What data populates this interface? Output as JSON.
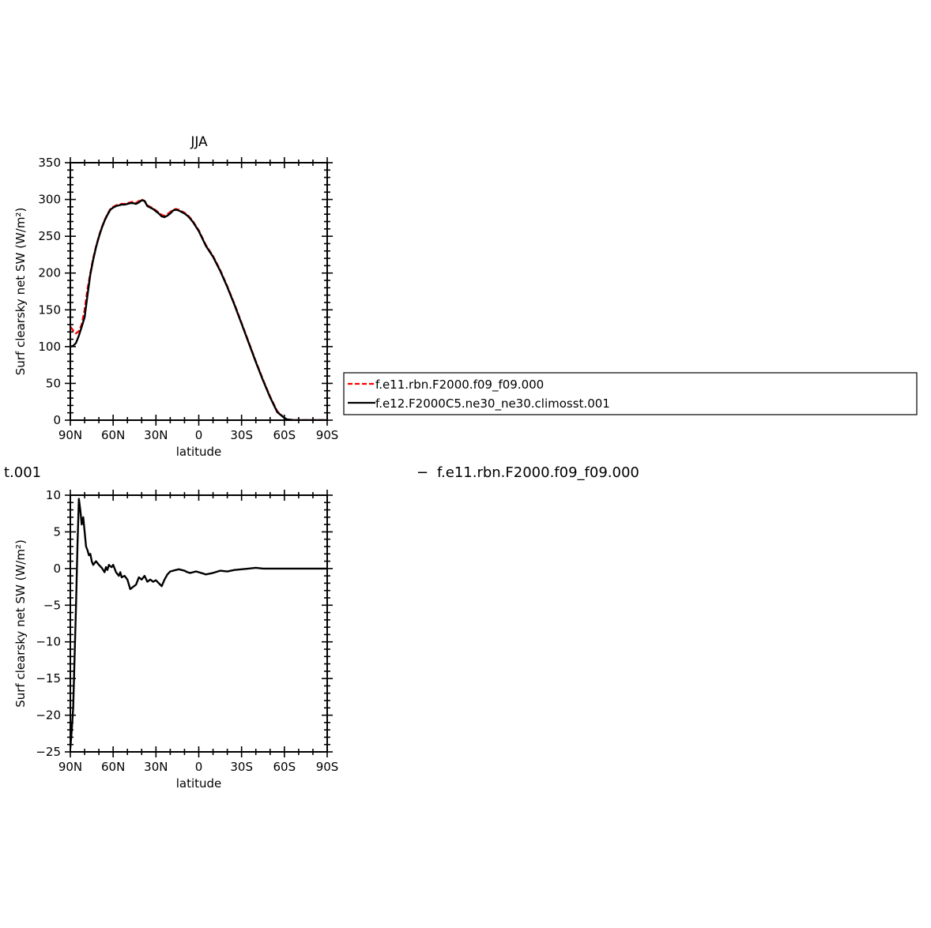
{
  "legend": {
    "entries": [
      {
        "label": "f.e11.rbn.F2000.f09_f09.000",
        "color": "#ff0000",
        "dash": "dashed"
      },
      {
        "label": "f.e12.F2000C5.ne30_ne30.climosst.001",
        "color": "#000000",
        "dash": "solid"
      }
    ]
  },
  "diff_title": {
    "left": "t.001",
    "dash": "−",
    "right": "f.e11.rbn.F2000.f09_f09.000"
  },
  "chart_data": [
    {
      "type": "line",
      "title": "JJA",
      "xlabel": "latitude",
      "ylabel": "Surf clearsky net SW (W/m²)",
      "xlim": [
        90,
        -90
      ],
      "ylim": [
        0,
        350
      ],
      "xticks": [
        90,
        60,
        30,
        0,
        -30,
        -60,
        -90
      ],
      "xtick_labels": [
        "90N",
        "60N",
        "30N",
        "0",
        "30S",
        "60S",
        "90S"
      ],
      "yticks": [
        0,
        50,
        100,
        150,
        200,
        250,
        300,
        350
      ],
      "ytick_labels": [
        "0",
        "50",
        "100",
        "150",
        "200",
        "250",
        "300",
        "350"
      ],
      "grid": false,
      "legend_position": "right",
      "series": [
        {
          "name": "f.e11.rbn.F2000.f09_f09.000",
          "color": "#ff0000",
          "dash": "dashed",
          "x": [
            90,
            88,
            86,
            84,
            82,
            80,
            78,
            76,
            74,
            72,
            70,
            68,
            66,
            64,
            62,
            60,
            58,
            56,
            54,
            52,
            50,
            48,
            46,
            44,
            42,
            40,
            38,
            36,
            34,
            32,
            30,
            28,
            26,
            24,
            22,
            20,
            18,
            16,
            14,
            12,
            10,
            8,
            6,
            4,
            2,
            0,
            -5,
            -10,
            -15,
            -20,
            -25,
            -30,
            -35,
            -40,
            -45,
            -50,
            -55,
            -60,
            -62,
            -64,
            -66,
            -68,
            -70,
            -75,
            -80,
            -85,
            -90
          ],
          "y": [
            127,
            122,
            118,
            121,
            130,
            150,
            178,
            200,
            220,
            236,
            250,
            262,
            272,
            280,
            287,
            290,
            292,
            293,
            294,
            294,
            295,
            296,
            297,
            295,
            298,
            300,
            298,
            292,
            290,
            288,
            285,
            282,
            279,
            278,
            280,
            283,
            286,
            287,
            286,
            284,
            282,
            279,
            275,
            270,
            264,
            258,
            238,
            223,
            204,
            182,
            158,
            132,
            106,
            80,
            55,
            32,
            12,
            3,
            1,
            0.5,
            0.2,
            0,
            0,
            0,
            0,
            0,
            0
          ]
        },
        {
          "name": "f.e12.F2000C5.ne30_ne30.climosst.001",
          "color": "#000000",
          "dash": "solid",
          "x": [
            90,
            88,
            86,
            84,
            82,
            80,
            78,
            76,
            74,
            72,
            70,
            68,
            66,
            64,
            62,
            60,
            58,
            56,
            54,
            52,
            50,
            48,
            46,
            44,
            42,
            40,
            38,
            36,
            34,
            32,
            30,
            28,
            26,
            24,
            22,
            20,
            18,
            16,
            14,
            12,
            10,
            8,
            6,
            4,
            2,
            0,
            -5,
            -10,
            -15,
            -20,
            -25,
            -30,
            -35,
            -40,
            -45,
            -50,
            -55,
            -60,
            -62,
            -64,
            -66,
            -68,
            -70,
            -75,
            -80,
            -85,
            -90
          ],
          "y": [
            100,
            101,
            105,
            115,
            127,
            140,
            170,
            198,
            218,
            235,
            249,
            261,
            271,
            279,
            286,
            289,
            291,
            292,
            293,
            293,
            294,
            295,
            295,
            294,
            296,
            299,
            298,
            291,
            289,
            287,
            284,
            281,
            277,
            276,
            278,
            281,
            285,
            286,
            285,
            283,
            281,
            278,
            274,
            269,
            263,
            257,
            237,
            222,
            203,
            181,
            157,
            131,
            105,
            79,
            54,
            31,
            11,
            3,
            1,
            0.5,
            0.2,
            0,
            0,
            0,
            0,
            0,
            0
          ]
        }
      ]
    },
    {
      "type": "line",
      "xlabel": "latitude",
      "ylabel": "Surf clearsky net SW (W/m²)",
      "xlim": [
        90,
        -90
      ],
      "ylim": [
        -25,
        10
      ],
      "xticks": [
        90,
        60,
        30,
        0,
        -30,
        -60,
        -90
      ],
      "xtick_labels": [
        "90N",
        "60N",
        "30N",
        "0",
        "30S",
        "60S",
        "90S"
      ],
      "yticks": [
        -25,
        -20,
        -15,
        -10,
        -5,
        0,
        5,
        10
      ],
      "ytick_labels": [
        "−25",
        "−20",
        "−15",
        "−10",
        "−5",
        "0",
        "5",
        "10"
      ],
      "grid": false,
      "series": [
        {
          "color": "#000000",
          "dash": "solid",
          "x": [
            90,
            89,
            88,
            87,
            86,
            85,
            84,
            83,
            82,
            81,
            80,
            79,
            78,
            77,
            76,
            75,
            74,
            72,
            70,
            68,
            66,
            65,
            64,
            63,
            62,
            61,
            60,
            58,
            56,
            55,
            54,
            52,
            50,
            48,
            46,
            44,
            42,
            40,
            38,
            36,
            34,
            32,
            30,
            28,
            26,
            24,
            22,
            20,
            18,
            16,
            14,
            12,
            10,
            8,
            6,
            4,
            2,
            0,
            -5,
            -10,
            -15,
            -20,
            -25,
            -30,
            -35,
            -40,
            -45,
            -50,
            -55,
            -60,
            -65,
            -70,
            -75,
            -80,
            -85,
            -90
          ],
          "y": [
            -24.5,
            -22,
            -19,
            -12,
            -5,
            3,
            9.5,
            8,
            6,
            7,
            5,
            3,
            2.5,
            1.8,
            2,
            1,
            0.5,
            1,
            0.5,
            0.1,
            -0.5,
            0.2,
            -0.2,
            0.5,
            0.3,
            0.2,
            0.5,
            -0.5,
            -1,
            -0.5,
            -1.2,
            -1.0,
            -1.5,
            -2.8,
            -2.5,
            -2.2,
            -1.2,
            -1.5,
            -1.0,
            -1.8,
            -1.5,
            -1.8,
            -1.6,
            -2.0,
            -2.4,
            -1.5,
            -0.8,
            -0.4,
            -0.3,
            -0.2,
            -0.1,
            -0.2,
            -0.3,
            -0.5,
            -0.6,
            -0.5,
            -0.4,
            -0.5,
            -0.8,
            -0.6,
            -0.3,
            -0.4,
            -0.2,
            -0.1,
            0.0,
            0.1,
            0.0,
            0.0,
            0.0,
            0.0,
            0.0,
            0.0,
            0.0,
            0.0,
            0.0,
            0.0
          ]
        }
      ]
    }
  ]
}
